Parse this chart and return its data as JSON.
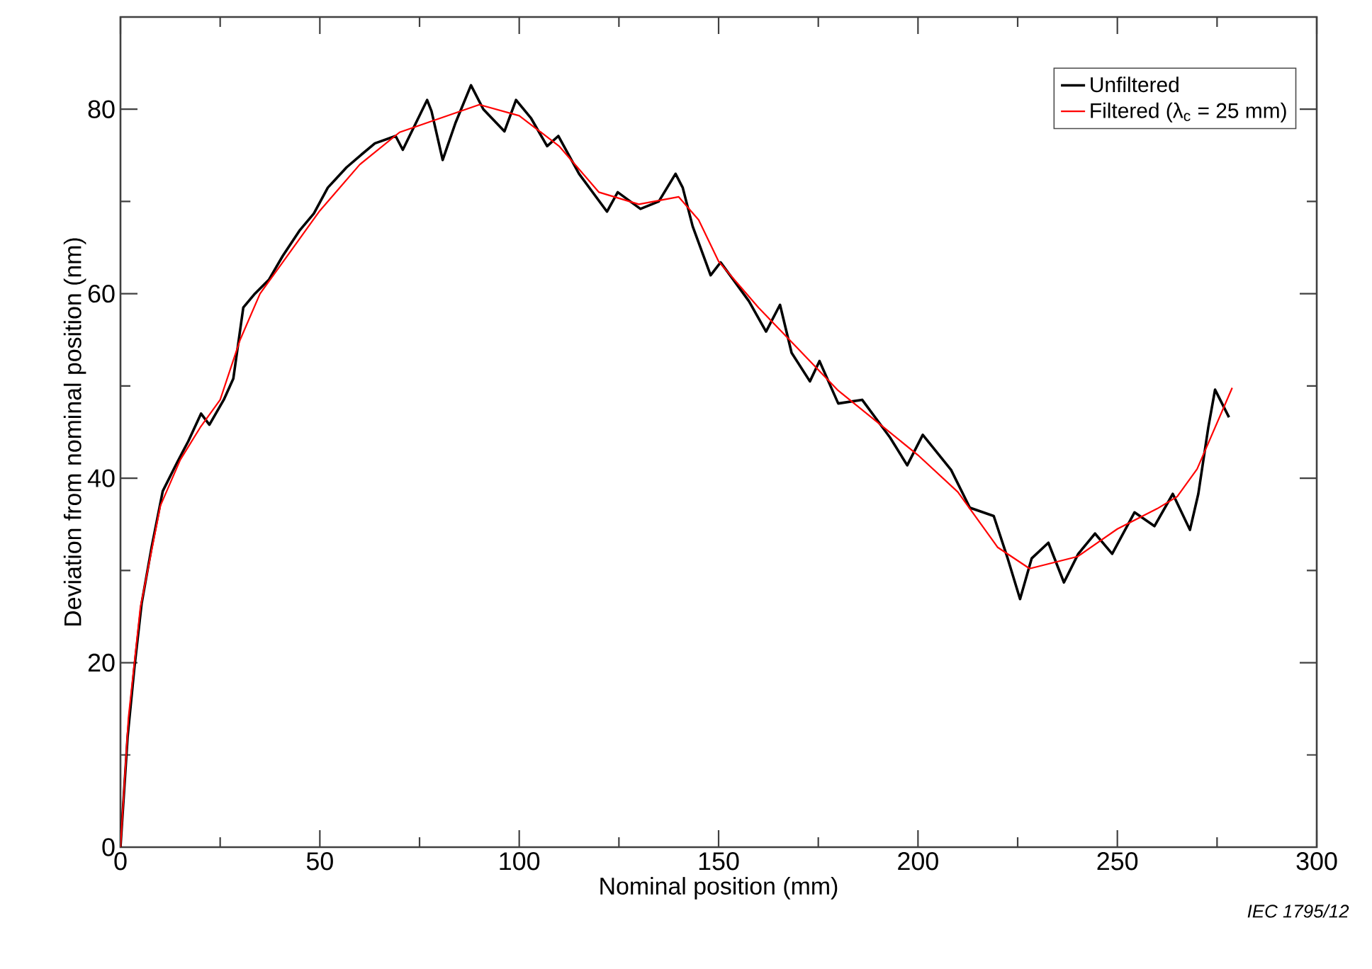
{
  "chart_data": {
    "type": "line",
    "xlabel": "Nominal position  (mm)",
    "ylabel": "Deviation from nominal position  (nm)",
    "xlim": [
      0,
      300
    ],
    "xticks": [
      0,
      50,
      100,
      150,
      200,
      250,
      300
    ],
    "ylim": [
      0,
      90
    ],
    "yticks": [
      0,
      20,
      40,
      60,
      80
    ],
    "legend": "top right",
    "annotations": [
      "IEC  1795/12"
    ],
    "series": [
      {
        "name": "Unfiltered",
        "color": "#000000",
        "x": [
          0,
          1.8,
          3.5,
          5.3,
          7.8,
          10.6,
          14.2,
          17,
          20.2,
          22.3,
          25.9,
          28.3,
          30.8,
          33.7,
          37.2,
          40.7,
          45,
          48.5,
          52,
          56.7,
          60.2,
          63.8,
          69,
          70.8,
          76.9,
          78,
          80.8,
          84,
          87.9,
          91,
          96.3,
          99.2,
          103,
          107,
          109.8,
          115,
          122,
          124.7,
          130.4,
          135,
          139.2,
          141,
          143.5,
          148,
          150.5,
          157.6,
          161.9,
          165.4,
          168.3,
          172.9,
          175.3,
          180,
          186,
          193,
          197.3,
          201.2,
          208.3,
          213,
          219,
          222.5,
          225.6,
          228.5,
          232.7,
          236.6,
          240.2,
          244.4,
          248.7,
          254.3,
          259.3,
          263.9,
          268.2,
          270.3,
          272.8,
          274.5,
          278
        ],
        "values": [
          0,
          12,
          19.5,
          26.4,
          32.5,
          38.6,
          41.7,
          44,
          47,
          45.8,
          48.5,
          50.8,
          58.5,
          60,
          61.5,
          64.1,
          66.9,
          68.7,
          71.5,
          73.7,
          75,
          76.3,
          77.1,
          75.6,
          81,
          79.8,
          74.5,
          78.5,
          82.6,
          80,
          77.6,
          81,
          79,
          76,
          77.1,
          73,
          68.9,
          71,
          69.2,
          70,
          73,
          71.5,
          67.3,
          62,
          63.4,
          59.2,
          55.9,
          58.8,
          53.6,
          50.5,
          52.7,
          48.1,
          48.5,
          44.4,
          41.4,
          44.7,
          40.9,
          36.8,
          35.9,
          31.3,
          26.9,
          31.3,
          33,
          28.7,
          31.8,
          34,
          31.8,
          36.3,
          34.8,
          38.3,
          34.4,
          38.3,
          45.5,
          49.6,
          46.6
        ]
      },
      {
        "name": "Filtered (λ$_{c}$ = 25 mm)",
        "color": "#ff0000",
        "x": [
          0,
          2,
          5,
          10,
          15,
          20,
          25,
          30,
          35,
          40,
          50,
          60,
          70,
          80,
          90,
          100,
          110,
          120,
          130,
          140,
          145,
          150,
          160,
          170,
          180,
          190,
          200,
          210,
          220,
          228,
          240,
          250,
          260,
          265,
          270,
          278.8
        ],
        "values": [
          0,
          14,
          26,
          37,
          42,
          45.5,
          48.5,
          55,
          60,
          63,
          69,
          74,
          77.5,
          79,
          80.5,
          79.3,
          76,
          71,
          69.7,
          70.5,
          68,
          63.5,
          58.5,
          54,
          49.5,
          46,
          42.5,
          38.5,
          32.5,
          30.2,
          31.5,
          34.5,
          36.7,
          38,
          41,
          49.8
        ]
      }
    ]
  }
}
